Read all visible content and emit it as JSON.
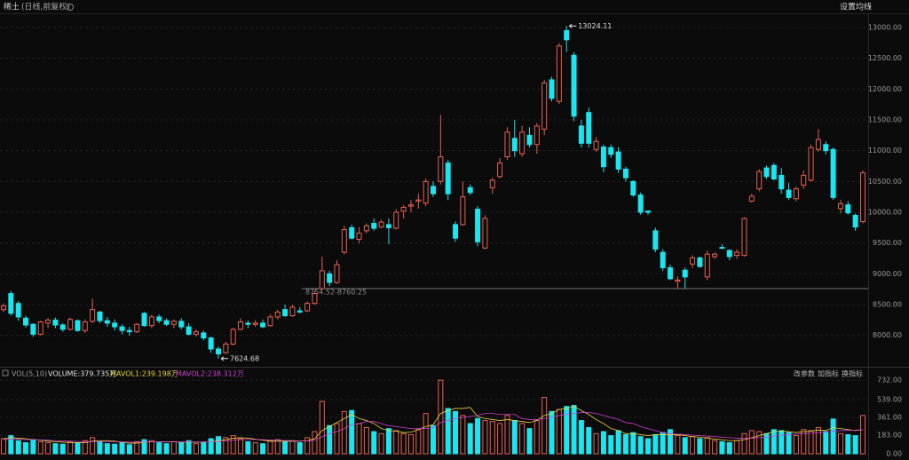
{
  "header": {
    "title": "稀土",
    "subtitle": "(日线,前复权)",
    "menu": "设置均线"
  },
  "chart_data": {
    "type": "candlestick",
    "up_color": "#e8604f",
    "down_color": "#19e6f0",
    "grid": true,
    "open": [
      8420,
      8680,
      8520,
      8280,
      8180,
      8020,
      8200,
      8250,
      8170,
      8100,
      8240,
      8080,
      8230,
      8380,
      8240,
      8200,
      8140,
      8080,
      8060,
      8360,
      8160,
      8300,
      8240,
      8180,
      8230,
      8140,
      8020,
      8040,
      7960,
      7780,
      7720,
      7860,
      8100,
      8200,
      8180,
      8200,
      8160,
      8300,
      8420,
      8320,
      8400,
      8400,
      8520,
      8760,
      9000,
      8860,
      9350,
      9750,
      9560,
      9700,
      9820,
      9760,
      9800,
      9740,
      10020,
      10100,
      10180,
      10150,
      10420,
      10500,
      10800,
      9800,
      9800,
      10400,
      10050,
      9420,
      10400,
      10580,
      10900,
      11200,
      10950,
      11250,
      11100,
      11350,
      12150,
      11800,
      12950,
      12550,
      11400,
      11620,
      11020,
      11060,
      11050,
      10980,
      10700,
      10500,
      10280,
      10020,
      9700,
      9350,
      9100,
      8880,
      9060,
      9160,
      9260,
      8950,
      9280,
      9430,
      9380,
      9300,
      9300,
      10180,
      10380,
      10720,
      10760,
      10600,
      10360,
      10220,
      10440,
      10520,
      11020,
      11100,
      11020,
      10060,
      10120,
      9950,
      9850
    ],
    "high": [
      8520,
      8720,
      8560,
      8320,
      8200,
      8240,
      8280,
      8290,
      8200,
      8290,
      8260,
      8260,
      8600,
      8400,
      8300,
      8260,
      8180,
      8140,
      8200,
      8380,
      8340,
      8340,
      8280,
      8260,
      8280,
      8200,
      8100,
      8080,
      7980,
      7820,
      7900,
      8120,
      8280,
      8240,
      8250,
      8260,
      8340,
      8420,
      8500,
      8500,
      8460,
      8550,
      8720,
      9280,
      9050,
      9220,
      9780,
      9800,
      9760,
      9820,
      9900,
      9880,
      9900,
      10050,
      10120,
      10200,
      10300,
      10550,
      10500,
      11580,
      10850,
      9850,
      10500,
      10450,
      10100,
      9950,
      10560,
      10880,
      11380,
      11500,
      11400,
      11380,
      11450,
      12150,
      12200,
      12750,
      13024.11,
      12600,
      11500,
      11700,
      11220,
      11100,
      11100,
      11060,
      10740,
      10520,
      10320,
      10030,
      9750,
      9400,
      9150,
      8960,
      9100,
      9300,
      9280,
      9380,
      9350,
      9480,
      9400,
      9400,
      9920,
      10300,
      10700,
      10760,
      10800,
      10720,
      10480,
      10420,
      10680,
      11100,
      11350,
      11150,
      11050,
      10200,
      10180,
      9980,
      10680
    ],
    "low": [
      8380,
      8320,
      8240,
      8130,
      7980,
      8000,
      8120,
      8120,
      8060,
      8080,
      8060,
      8040,
      8200,
      8200,
      8140,
      8080,
      8020,
      8000,
      8040,
      8140,
      8120,
      8200,
      8150,
      8120,
      8100,
      8000,
      7980,
      7920,
      7720,
      7624.68,
      7700,
      7840,
      8080,
      8120,
      8140,
      8120,
      8140,
      8260,
      8300,
      8300,
      8360,
      8380,
      8500,
      8740,
      8800,
      8840,
      9320,
      9560,
      9500,
      9660,
      9700,
      9740,
      9480,
      9720,
      9900,
      10000,
      10060,
      10100,
      10250,
      10450,
      10200,
      9520,
      9780,
      10280,
      9450,
      9400,
      10300,
      10550,
      10850,
      10900,
      10900,
      11050,
      10950,
      11250,
      11800,
      11760,
      12600,
      11480,
      11050,
      11050,
      10980,
      10650,
      10880,
      10640,
      10500,
      10250,
      9960,
      9960,
      9350,
      9050,
      8900,
      8760,
      8760,
      9100,
      9100,
      8900,
      9240,
      9400,
      9220,
      9240,
      9280,
      10160,
      10340,
      10540,
      10520,
      10300,
      10200,
      10180,
      10380,
      10500,
      10980,
      10940,
      10200,
      9980,
      9960,
      9700,
      9820
    ],
    "close": [
      8480,
      8360,
      8300,
      8170,
      8020,
      8220,
      8250,
      8170,
      8100,
      8260,
      8080,
      8220,
      8420,
      8240,
      8200,
      8140,
      8080,
      8060,
      8180,
      8160,
      8300,
      8240,
      8180,
      8230,
      8140,
      8020,
      8060,
      7960,
      7780,
      7700,
      7860,
      8100,
      8220,
      8180,
      8200,
      8140,
      8300,
      8380,
      8320,
      8460,
      8380,
      8520,
      8680,
      9050,
      8860,
      9150,
      9720,
      9580,
      9660,
      9780,
      9740,
      9840,
      9750,
      10000,
      10080,
      10120,
      10200,
      10500,
      10300,
      10900,
      10300,
      9580,
      10250,
      10320,
      9520,
      9900,
      10520,
      10800,
      11300,
      11000,
      11300,
      11100,
      11400,
      12100,
      11850,
      12700,
      12800,
      11560,
      11120,
      11120,
      11150,
      10740,
      10940,
      10700,
      10560,
      10280,
      10000,
      10000,
      9400,
      9100,
      8920,
      8900,
      8950,
      9260,
      9120,
      9320,
      9320,
      9420,
      9280,
      9350,
      9900,
      10260,
      10660,
      10580,
      10540,
      10380,
      10240,
      10380,
      10600,
      11050,
      11180,
      11000,
      10240,
      10140,
      9990,
      9760,
      10640
    ],
    "ylim": [
      7535,
      13230
    ],
    "yticks": [
      {
        "value": 8000,
        "label": "8000.00"
      },
      {
        "value": 8500,
        "label": "8500.00"
      },
      {
        "value": 9000,
        "label": "9000.00"
      },
      {
        "value": 9500,
        "label": "9500.00"
      },
      {
        "value": 10000,
        "label": "10000.00"
      },
      {
        "value": 10500,
        "label": "10500.00"
      },
      {
        "value": 11000,
        "label": "11000.00"
      },
      {
        "value": 11500,
        "label": "11500.00"
      },
      {
        "value": 12000,
        "label": "12000.00"
      },
      {
        "value": 12500,
        "label": "12500.00"
      },
      {
        "value": 13000,
        "label": "13000.00"
      }
    ],
    "reference_line": {
      "value": 8760.25,
      "label": "8754.52-8760.25"
    },
    "volume": {
      "title": "VOL(5,10)",
      "legend": "VOLUME:379.735万",
      "buttons": [
        "改参数",
        "加指标",
        "换指标"
      ],
      "values": [
        150,
        180,
        130,
        110,
        140,
        120,
        110,
        100,
        95,
        120,
        110,
        130,
        160,
        120,
        100,
        95,
        110,
        90,
        120,
        140,
        130,
        110,
        100,
        120,
        110,
        130,
        100,
        110,
        150,
        170,
        160,
        180,
        150,
        120,
        110,
        100,
        130,
        140,
        120,
        130,
        110,
        160,
        220,
        520,
        280,
        300,
        420,
        430,
        300,
        260,
        220,
        200,
        250,
        230,
        200,
        190,
        240,
        400,
        280,
        730,
        450,
        420,
        380,
        300,
        350,
        330,
        320,
        300,
        380,
        330,
        300,
        250,
        330,
        560,
        420,
        440,
        470,
        480,
        330,
        260,
        200,
        220,
        180,
        230,
        190,
        210,
        170,
        150,
        190,
        210,
        240,
        180,
        160,
        170,
        150,
        160,
        130,
        120,
        110,
        130,
        200,
        230,
        220,
        200,
        240,
        230,
        210,
        180,
        240,
        230,
        260,
        220,
        345,
        200,
        190,
        180,
        379.735
      ],
      "ylim": [
        0,
        758
      ],
      "yticks": [
        {
          "value": 0,
          "label": "0.00"
        },
        {
          "value": 183,
          "label": "183.00"
        },
        {
          "value": 361,
          "label": "361.00"
        },
        {
          "value": 539,
          "label": "539.00"
        },
        {
          "value": 732,
          "label": "732.00"
        }
      ],
      "series": [
        {
          "name": "MAVOL1",
          "legend": "MAVOL1:239.198万",
          "color": "#e8d33c",
          "values": [
            150,
            160,
            155,
            150,
            140,
            135,
            125,
            120,
            115,
            110,
            110,
            110,
            125,
            130,
            130,
            125,
            115,
            105,
            105,
            115,
            120,
            120,
            120,
            120,
            115,
            115,
            115,
            115,
            120,
            130,
            140,
            155,
            160,
            155,
            145,
            135,
            125,
            125,
            125,
            125,
            125,
            130,
            150,
            230,
            270,
            310,
            350,
            390,
            350,
            330,
            300,
            250,
            230,
            225,
            210,
            215,
            240,
            270,
            290,
            400,
            430,
            450,
            450,
            460,
            370,
            350,
            340,
            330,
            340,
            330,
            320,
            310,
            330,
            380,
            400,
            440,
            450,
            470,
            430,
            390,
            340,
            300,
            250,
            230,
            200,
            200,
            190,
            180,
            190,
            190,
            190,
            190,
            180,
            170,
            165,
            155,
            145,
            140,
            130,
            130,
            140,
            160,
            180,
            200,
            220,
            225,
            220,
            210,
            220,
            225,
            235,
            230,
            260,
            250,
            240,
            230,
            239.198
          ]
        },
        {
          "name": "MAVOL2",
          "legend": "MAVOL2:238.312万",
          "color": "#d040d0",
          "values": [
            140,
            145,
            145,
            140,
            140,
            138,
            135,
            130,
            128,
            125,
            122,
            120,
            120,
            122,
            122,
            120,
            118,
            115,
            115,
            118,
            120,
            120,
            118,
            118,
            118,
            118,
            118,
            118,
            118,
            122,
            128,
            135,
            140,
            142,
            142,
            140,
            138,
            135,
            132,
            130,
            128,
            128,
            135,
            170,
            200,
            220,
            250,
            290,
            300,
            320,
            320,
            300,
            280,
            270,
            260,
            250,
            250,
            250,
            260,
            310,
            330,
            350,
            360,
            370,
            380,
            400,
            400,
            390,
            390,
            390,
            350,
            340,
            340,
            350,
            360,
            380,
            390,
            400,
            410,
            410,
            400,
            380,
            360,
            340,
            310,
            300,
            270,
            250,
            230,
            210,
            200,
            195,
            190,
            185,
            180,
            175,
            170,
            165,
            160,
            155,
            155,
            155,
            160,
            165,
            175,
            185,
            190,
            195,
            200,
            205,
            210,
            215,
            225,
            230,
            232,
            235,
            238.312
          ]
        }
      ]
    }
  }
}
